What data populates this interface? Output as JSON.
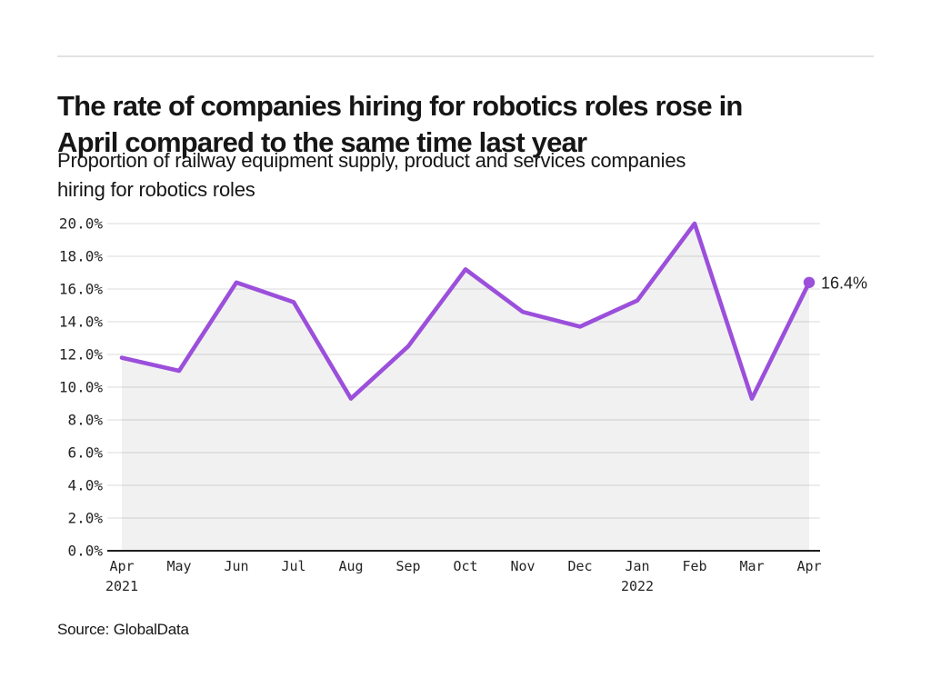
{
  "chart_data": {
    "type": "line",
    "title": "The rate of companies hiring for robotics roles rose in April compared to the same time last year",
    "title_lines": [
      "The rate of companies hiring for robotics roles rose in",
      "April compared to the same time last year"
    ],
    "subtitle": "Proportion of railway equipment supply, product and services companies hiring for robotics roles",
    "subtitle_lines": [
      "Proportion of railway equipment supply, product and services companies",
      "hiring for robotics roles"
    ],
    "categories": [
      "Apr",
      "May",
      "Jun",
      "Jul",
      "Aug",
      "Sep",
      "Oct",
      "Nov",
      "Dec",
      "Jan",
      "Feb",
      "Mar",
      "Apr"
    ],
    "category_years": [
      {
        "index": 0,
        "label": "2021"
      },
      {
        "index": 9,
        "label": "2022"
      }
    ],
    "values": [
      11.8,
      11.0,
      16.4,
      15.2,
      9.3,
      12.5,
      17.2,
      14.6,
      13.7,
      15.3,
      20.0,
      9.3,
      16.4
    ],
    "ylim": [
      0,
      20
    ],
    "ytick_step": 2,
    "yticklabels": [
      "0.0%",
      "2.0%",
      "4.0%",
      "6.0%",
      "8.0%",
      "10.0%",
      "12.0%",
      "14.0%",
      "16.0%",
      "18.0%",
      "20.0%"
    ],
    "xlabel": "",
    "ylabel": "",
    "grid": "horizontal",
    "legend": "none",
    "end_point_label": "16.4%",
    "line_color": "#9b4fdb",
    "grid_color": "#e7e7e7",
    "axis_color": "#1f1f1f",
    "fill_opacity": 0.055
  },
  "footer": {
    "source": "Source: GlobalData"
  }
}
